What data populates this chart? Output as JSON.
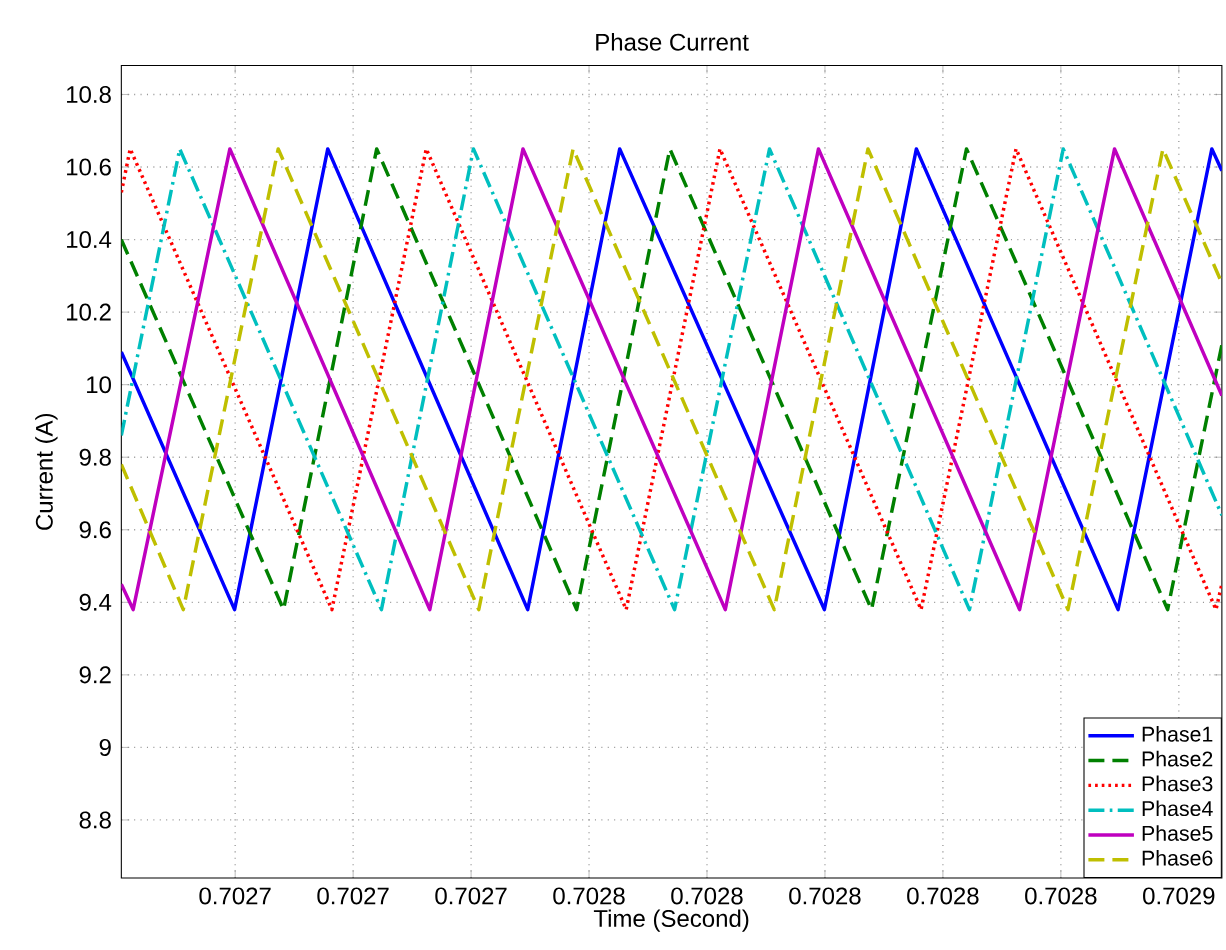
{
  "chart_data": {
    "type": "line",
    "title": "Phase Current",
    "xlabel": "Time (Second)",
    "ylabel": "Current (A)",
    "xlim": [
      0.7026807,
      0.7028673
    ],
    "ylim": [
      8.64,
      10.88
    ],
    "xticks": [
      {
        "value": 0.7027,
        "label": "0.7027"
      },
      {
        "value": 0.70272,
        "label": "0.7027"
      },
      {
        "value": 0.70274,
        "label": "0.7027"
      },
      {
        "value": 0.70276,
        "label": "0.7028"
      },
      {
        "value": 0.70278,
        "label": "0.7028"
      },
      {
        "value": 0.7028,
        "label": "0.7028"
      },
      {
        "value": 0.70282,
        "label": "0.7028"
      },
      {
        "value": 0.70284,
        "label": "0.7028"
      },
      {
        "value": 0.70286,
        "label": "0.7029"
      }
    ],
    "yticks": [
      8.8,
      9,
      9.2,
      9.4,
      9.6,
      9.8,
      10,
      10.2,
      10.4,
      10.6,
      10.8
    ],
    "grid": true,
    "legend": "bottom right",
    "series": [
      {
        "name": "Phase1",
        "color": "#0000ff",
        "line_style": "solid",
        "x": [
          0.7026807,
          0.7026999,
          0.7027157,
          0.7027496,
          0.7027652,
          0.7027999,
          0.7028155,
          0.7028497,
          0.7028656,
          0.7028673
        ],
        "values": [
          10.09,
          9.38,
          10.65,
          9.38,
          10.65,
          9.38,
          10.65,
          9.38,
          10.65,
          10.59
        ]
      },
      {
        "name": "Phase2",
        "color": "#008000",
        "line_style": "dashed",
        "x": [
          0.7026807,
          0.7027082,
          0.702724,
          0.7027579,
          0.7027737,
          0.7028079,
          0.702824,
          0.7028581,
          0.7028673
        ],
        "values": [
          10.4,
          9.38,
          10.65,
          9.38,
          10.65,
          9.38,
          10.65,
          9.38,
          10.11
        ]
      },
      {
        "name": "Phase3",
        "color": "#ff0000",
        "line_style": "dotted",
        "x": [
          0.7026807,
          0.7026822,
          0.7027164,
          0.7027324,
          0.7027663,
          0.7027822,
          0.7028163,
          0.7028324,
          0.7028663,
          0.7028673
        ],
        "values": [
          10.53,
          10.65,
          9.38,
          10.65,
          9.38,
          10.65,
          9.38,
          10.65,
          9.38,
          9.45
        ]
      },
      {
        "name": "Phase4",
        "color": "#00bfbf",
        "line_style": "dashdot",
        "x": [
          0.7026807,
          0.7026906,
          0.7027248,
          0.7027404,
          0.7027745,
          0.7027906,
          0.7028245,
          0.7028404,
          0.7028673
        ],
        "values": [
          9.86,
          10.65,
          9.38,
          10.65,
          9.38,
          10.65,
          9.38,
          10.65,
          9.64
        ]
      },
      {
        "name": "Phase5",
        "color": "#bf00bf",
        "line_style": "solid",
        "x": [
          0.7026807,
          0.7026827,
          0.7026991,
          0.702733,
          0.7027488,
          0.7027831,
          0.7027989,
          0.702833,
          0.7028491,
          0.7028673
        ],
        "values": [
          9.45,
          9.38,
          10.65,
          9.38,
          10.65,
          9.38,
          10.65,
          9.38,
          10.65,
          9.97
        ]
      },
      {
        "name": "Phase6",
        "color": "#bfbf00",
        "line_style": "dashed",
        "x": [
          0.7026807,
          0.7026912,
          0.7027073,
          0.7027413,
          0.7027573,
          0.7027914,
          0.7028073,
          0.7028412,
          0.7028573,
          0.7028673
        ],
        "values": [
          9.78,
          9.38,
          10.65,
          9.38,
          10.65,
          9.38,
          10.65,
          9.38,
          10.65,
          10.28
        ]
      }
    ]
  }
}
